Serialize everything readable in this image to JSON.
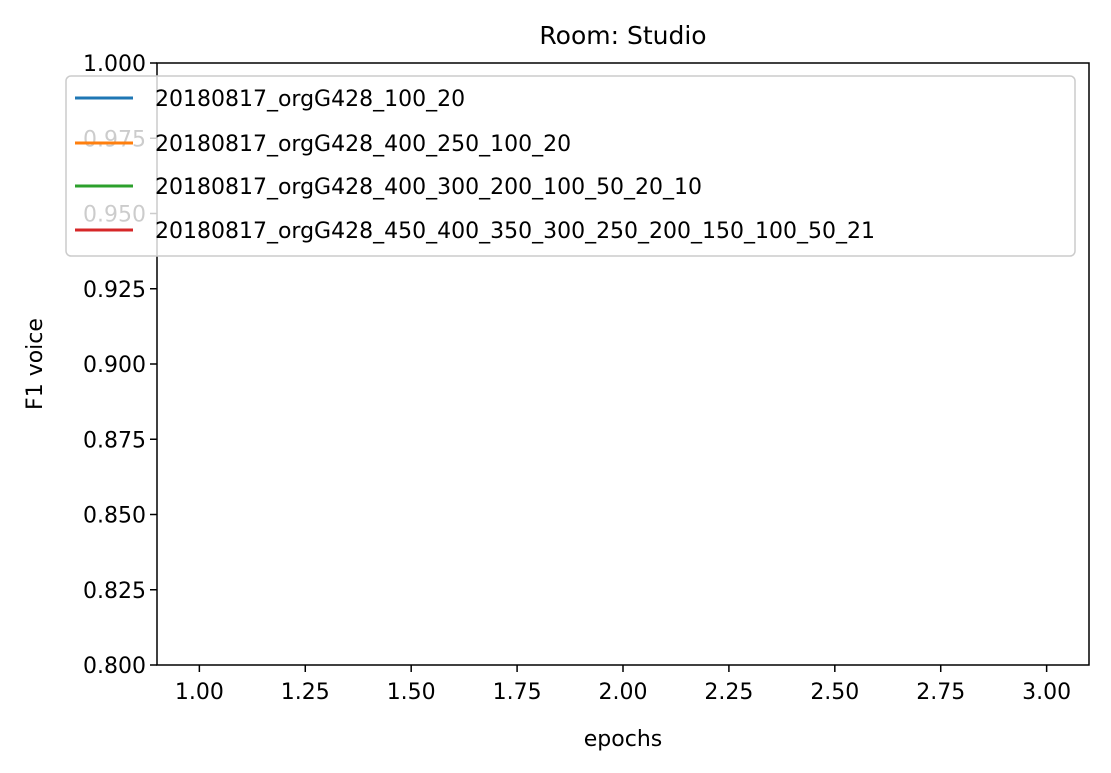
{
  "chart_data": {
    "type": "line",
    "title": "Room: Studio",
    "xlabel": "epochs",
    "ylabel": "F1 voice",
    "xlim": [
      0.9,
      3.1
    ],
    "ylim": [
      0.8,
      1.0
    ],
    "x_ticks": [
      1.0,
      1.25,
      1.5,
      1.75,
      2.0,
      2.25,
      2.5,
      2.75,
      3.0
    ],
    "x_tick_labels": [
      "1.00",
      "1.25",
      "1.50",
      "1.75",
      "2.00",
      "2.25",
      "2.50",
      "2.75",
      "3.00"
    ],
    "y_ticks": [
      0.8,
      0.825,
      0.85,
      0.875,
      0.9,
      0.925,
      0.95,
      0.975,
      1.0
    ],
    "y_tick_labels": [
      "0.800",
      "0.825",
      "0.850",
      "0.875",
      "0.900",
      "0.925",
      "0.950",
      "0.975",
      "1.000"
    ],
    "grid": false,
    "legend_position": "top",
    "series": [
      {
        "name": "20180817_orgG428_100_20",
        "color": "#1f77b4",
        "x": [],
        "y": []
      },
      {
        "name": "20180817_orgG428_400_250_100_20",
        "color": "#ff7f0e",
        "x": [],
        "y": []
      },
      {
        "name": "20180817_orgG428_400_300_200_100_50_20_10",
        "color": "#2ca02c",
        "x": [],
        "y": []
      },
      {
        "name": "20180817_orgG428_450_400_350_300_250_200_150_100_50_21",
        "color": "#d62728",
        "x": [],
        "y": []
      }
    ]
  }
}
